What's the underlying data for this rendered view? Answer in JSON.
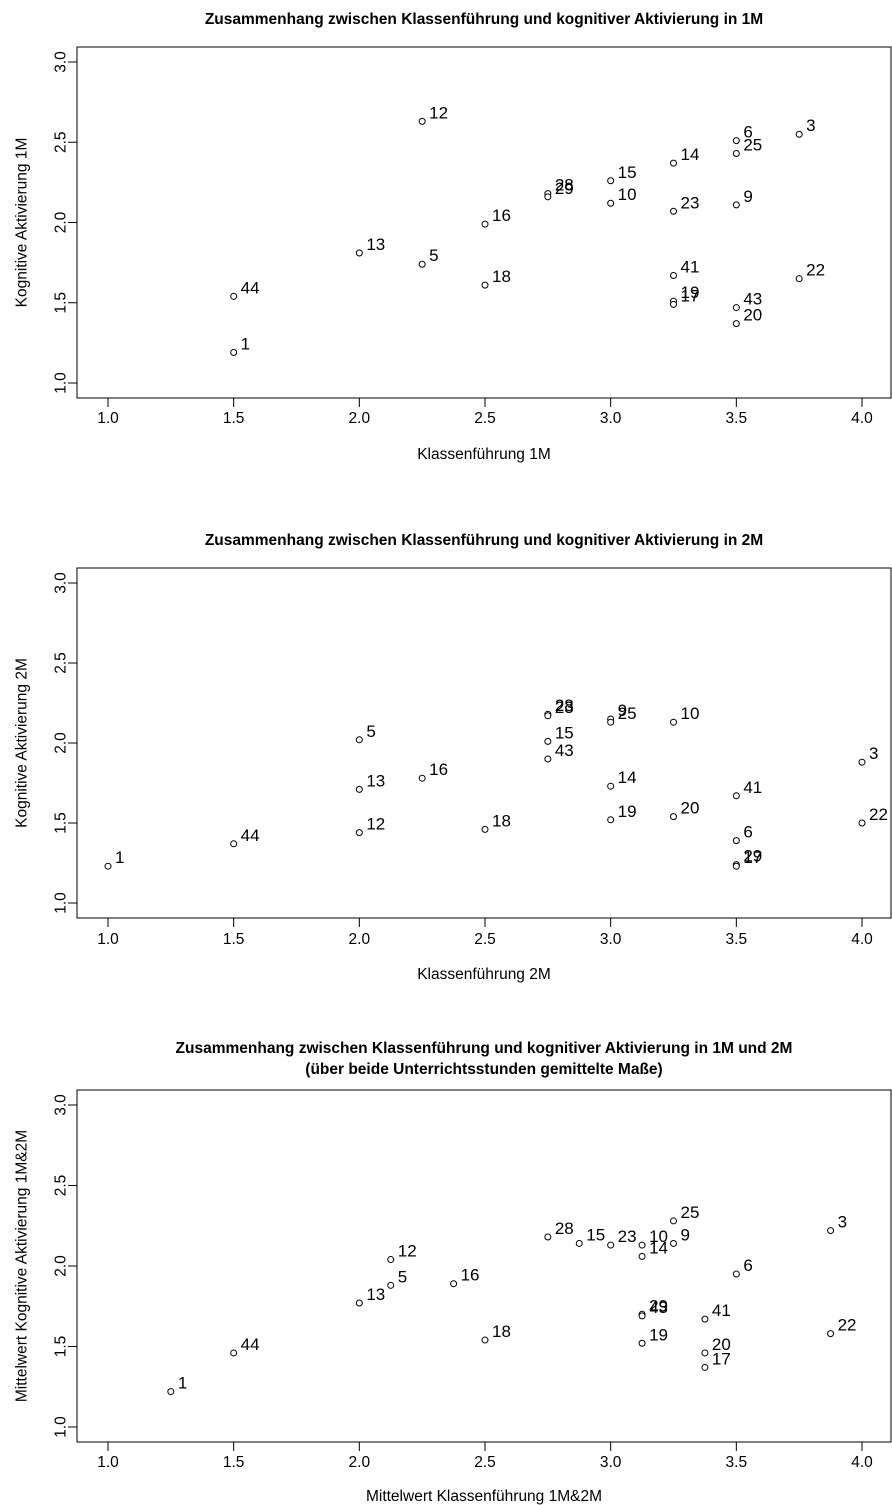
{
  "chart_data": [
    {
      "type": "scatter",
      "title": [
        "Zusammenhang zwischen Klassenführung und kognitiver Aktivierung in 1M"
      ],
      "xlabel": "Klassenführung 1M",
      "ylabel": "Kognitive Aktivierung 1M",
      "xlim": [
        1.0,
        4.0
      ],
      "ylim": [
        1.0,
        3.0
      ],
      "xticks": [
        "1.0",
        "1.5",
        "2.0",
        "2.5",
        "3.0",
        "3.5",
        "4.0"
      ],
      "yticks": [
        "1.0",
        "1.5",
        "2.0",
        "2.5",
        "3.0"
      ],
      "grid": false,
      "points": [
        {
          "label": "12",
          "x": 2.25,
          "y": 2.63
        },
        {
          "label": "6",
          "x": 3.5,
          "y": 2.51
        },
        {
          "label": "3",
          "x": 3.75,
          "y": 2.55
        },
        {
          "label": "25",
          "x": 3.5,
          "y": 2.43
        },
        {
          "label": "14",
          "x": 3.25,
          "y": 2.37
        },
        {
          "label": "15",
          "x": 3.0,
          "y": 2.26
        },
        {
          "label": "28",
          "x": 2.75,
          "y": 2.18
        },
        {
          "label": "29",
          "x": 2.75,
          "y": 2.16
        },
        {
          "label": "10",
          "x": 3.0,
          "y": 2.12
        },
        {
          "label": "9",
          "x": 3.5,
          "y": 2.11
        },
        {
          "label": "23",
          "x": 3.25,
          "y": 2.07
        },
        {
          "label": "16",
          "x": 2.5,
          "y": 1.99
        },
        {
          "label": "13",
          "x": 2.0,
          "y": 1.81
        },
        {
          "label": "5",
          "x": 2.25,
          "y": 1.74
        },
        {
          "label": "41",
          "x": 3.25,
          "y": 1.67
        },
        {
          "label": "22",
          "x": 3.75,
          "y": 1.65
        },
        {
          "label": "18",
          "x": 2.5,
          "y": 1.61
        },
        {
          "label": "44",
          "x": 1.5,
          "y": 1.54
        },
        {
          "label": "19",
          "x": 3.25,
          "y": 1.51
        },
        {
          "label": "17",
          "x": 3.25,
          "y": 1.49
        },
        {
          "label": "43",
          "x": 3.5,
          "y": 1.47
        },
        {
          "label": "20",
          "x": 3.5,
          "y": 1.37
        },
        {
          "label": "1",
          "x": 1.5,
          "y": 1.19
        }
      ]
    },
    {
      "type": "scatter",
      "title": [
        "Zusammenhang zwischen Klassenführung und kognitiver Aktivierung in 2M"
      ],
      "xlabel": "Klassenführung 2M",
      "ylabel": "Kognitive Aktivierung 2M",
      "xlim": [
        1.0,
        4.0
      ],
      "ylim": [
        1.0,
        3.0
      ],
      "xticks": [
        "1.0",
        "1.5",
        "2.0",
        "2.5",
        "3.0",
        "3.5",
        "4.0"
      ],
      "yticks": [
        "1.0",
        "1.5",
        "2.0",
        "2.5",
        "3.0"
      ],
      "grid": false,
      "points": [
        {
          "label": "28",
          "x": 2.75,
          "y": 2.18
        },
        {
          "label": "23",
          "x": 2.75,
          "y": 2.17
        },
        {
          "label": "9",
          "x": 3.0,
          "y": 2.15
        },
        {
          "label": "25",
          "x": 3.0,
          "y": 2.13
        },
        {
          "label": "10",
          "x": 3.25,
          "y": 2.13
        },
        {
          "label": "5",
          "x": 2.0,
          "y": 2.02
        },
        {
          "label": "15",
          "x": 2.75,
          "y": 2.01
        },
        {
          "label": "43",
          "x": 2.75,
          "y": 1.9
        },
        {
          "label": "3",
          "x": 4.0,
          "y": 1.88
        },
        {
          "label": "16",
          "x": 2.25,
          "y": 1.78
        },
        {
          "label": "14",
          "x": 3.0,
          "y": 1.73
        },
        {
          "label": "13",
          "x": 2.0,
          "y": 1.71
        },
        {
          "label": "41",
          "x": 3.5,
          "y": 1.67
        },
        {
          "label": "20",
          "x": 3.25,
          "y": 1.54
        },
        {
          "label": "19",
          "x": 3.0,
          "y": 1.52
        },
        {
          "label": "22",
          "x": 4.0,
          "y": 1.5
        },
        {
          "label": "18",
          "x": 2.5,
          "y": 1.46
        },
        {
          "label": "12",
          "x": 2.0,
          "y": 1.44
        },
        {
          "label": "6",
          "x": 3.5,
          "y": 1.39
        },
        {
          "label": "44",
          "x": 1.5,
          "y": 1.37
        },
        {
          "label": "29",
          "x": 3.5,
          "y": 1.24
        },
        {
          "label": "17",
          "x": 3.5,
          "y": 1.23
        },
        {
          "label": "1",
          "x": 1.0,
          "y": 1.23
        }
      ]
    },
    {
      "type": "scatter",
      "title": [
        "Zusammenhang zwischen Klassenführung und kognitiver Aktivierung in 1M und 2M",
        "(über beide Unterrichtsstunden gemittelte Maße)"
      ],
      "xlabel": "Mittelwert Klassenführung 1M&2M",
      "ylabel": "Mittelwert Kognitive Aktivierung 1M&2M",
      "xlim": [
        1.0,
        4.0
      ],
      "ylim": [
        1.0,
        3.0
      ],
      "xticks": [
        "1.0",
        "1.5",
        "2.0",
        "2.5",
        "3.0",
        "3.5",
        "4.0"
      ],
      "yticks": [
        "1.0",
        "1.5",
        "2.0",
        "2.5",
        "3.0"
      ],
      "grid": false,
      "points": [
        {
          "label": "25",
          "x": 3.25,
          "y": 2.28
        },
        {
          "label": "3",
          "x": 3.875,
          "y": 2.22
        },
        {
          "label": "28",
          "x": 2.75,
          "y": 2.18
        },
        {
          "label": "15",
          "x": 2.875,
          "y": 2.14
        },
        {
          "label": "23",
          "x": 3.0,
          "y": 2.13
        },
        {
          "label": "10",
          "x": 3.125,
          "y": 2.13
        },
        {
          "label": "9",
          "x": 3.25,
          "y": 2.14
        },
        {
          "label": "14",
          "x": 3.125,
          "y": 2.06
        },
        {
          "label": "12",
          "x": 2.125,
          "y": 2.04
        },
        {
          "label": "6",
          "x": 3.5,
          "y": 1.95
        },
        {
          "label": "16",
          "x": 2.375,
          "y": 1.89
        },
        {
          "label": "5",
          "x": 2.125,
          "y": 1.88
        },
        {
          "label": "13",
          "x": 2.0,
          "y": 1.77
        },
        {
          "label": "29",
          "x": 3.125,
          "y": 1.7
        },
        {
          "label": "43",
          "x": 3.125,
          "y": 1.69
        },
        {
          "label": "41",
          "x": 3.375,
          "y": 1.67
        },
        {
          "label": "22",
          "x": 3.875,
          "y": 1.58
        },
        {
          "label": "18",
          "x": 2.5,
          "y": 1.54
        },
        {
          "label": "19",
          "x": 3.125,
          "y": 1.52
        },
        {
          "label": "44",
          "x": 1.5,
          "y": 1.46
        },
        {
          "label": "20",
          "x": 3.375,
          "y": 1.46
        },
        {
          "label": "17",
          "x": 3.375,
          "y": 1.37
        },
        {
          "label": "1",
          "x": 1.25,
          "y": 1.22
        }
      ]
    }
  ]
}
